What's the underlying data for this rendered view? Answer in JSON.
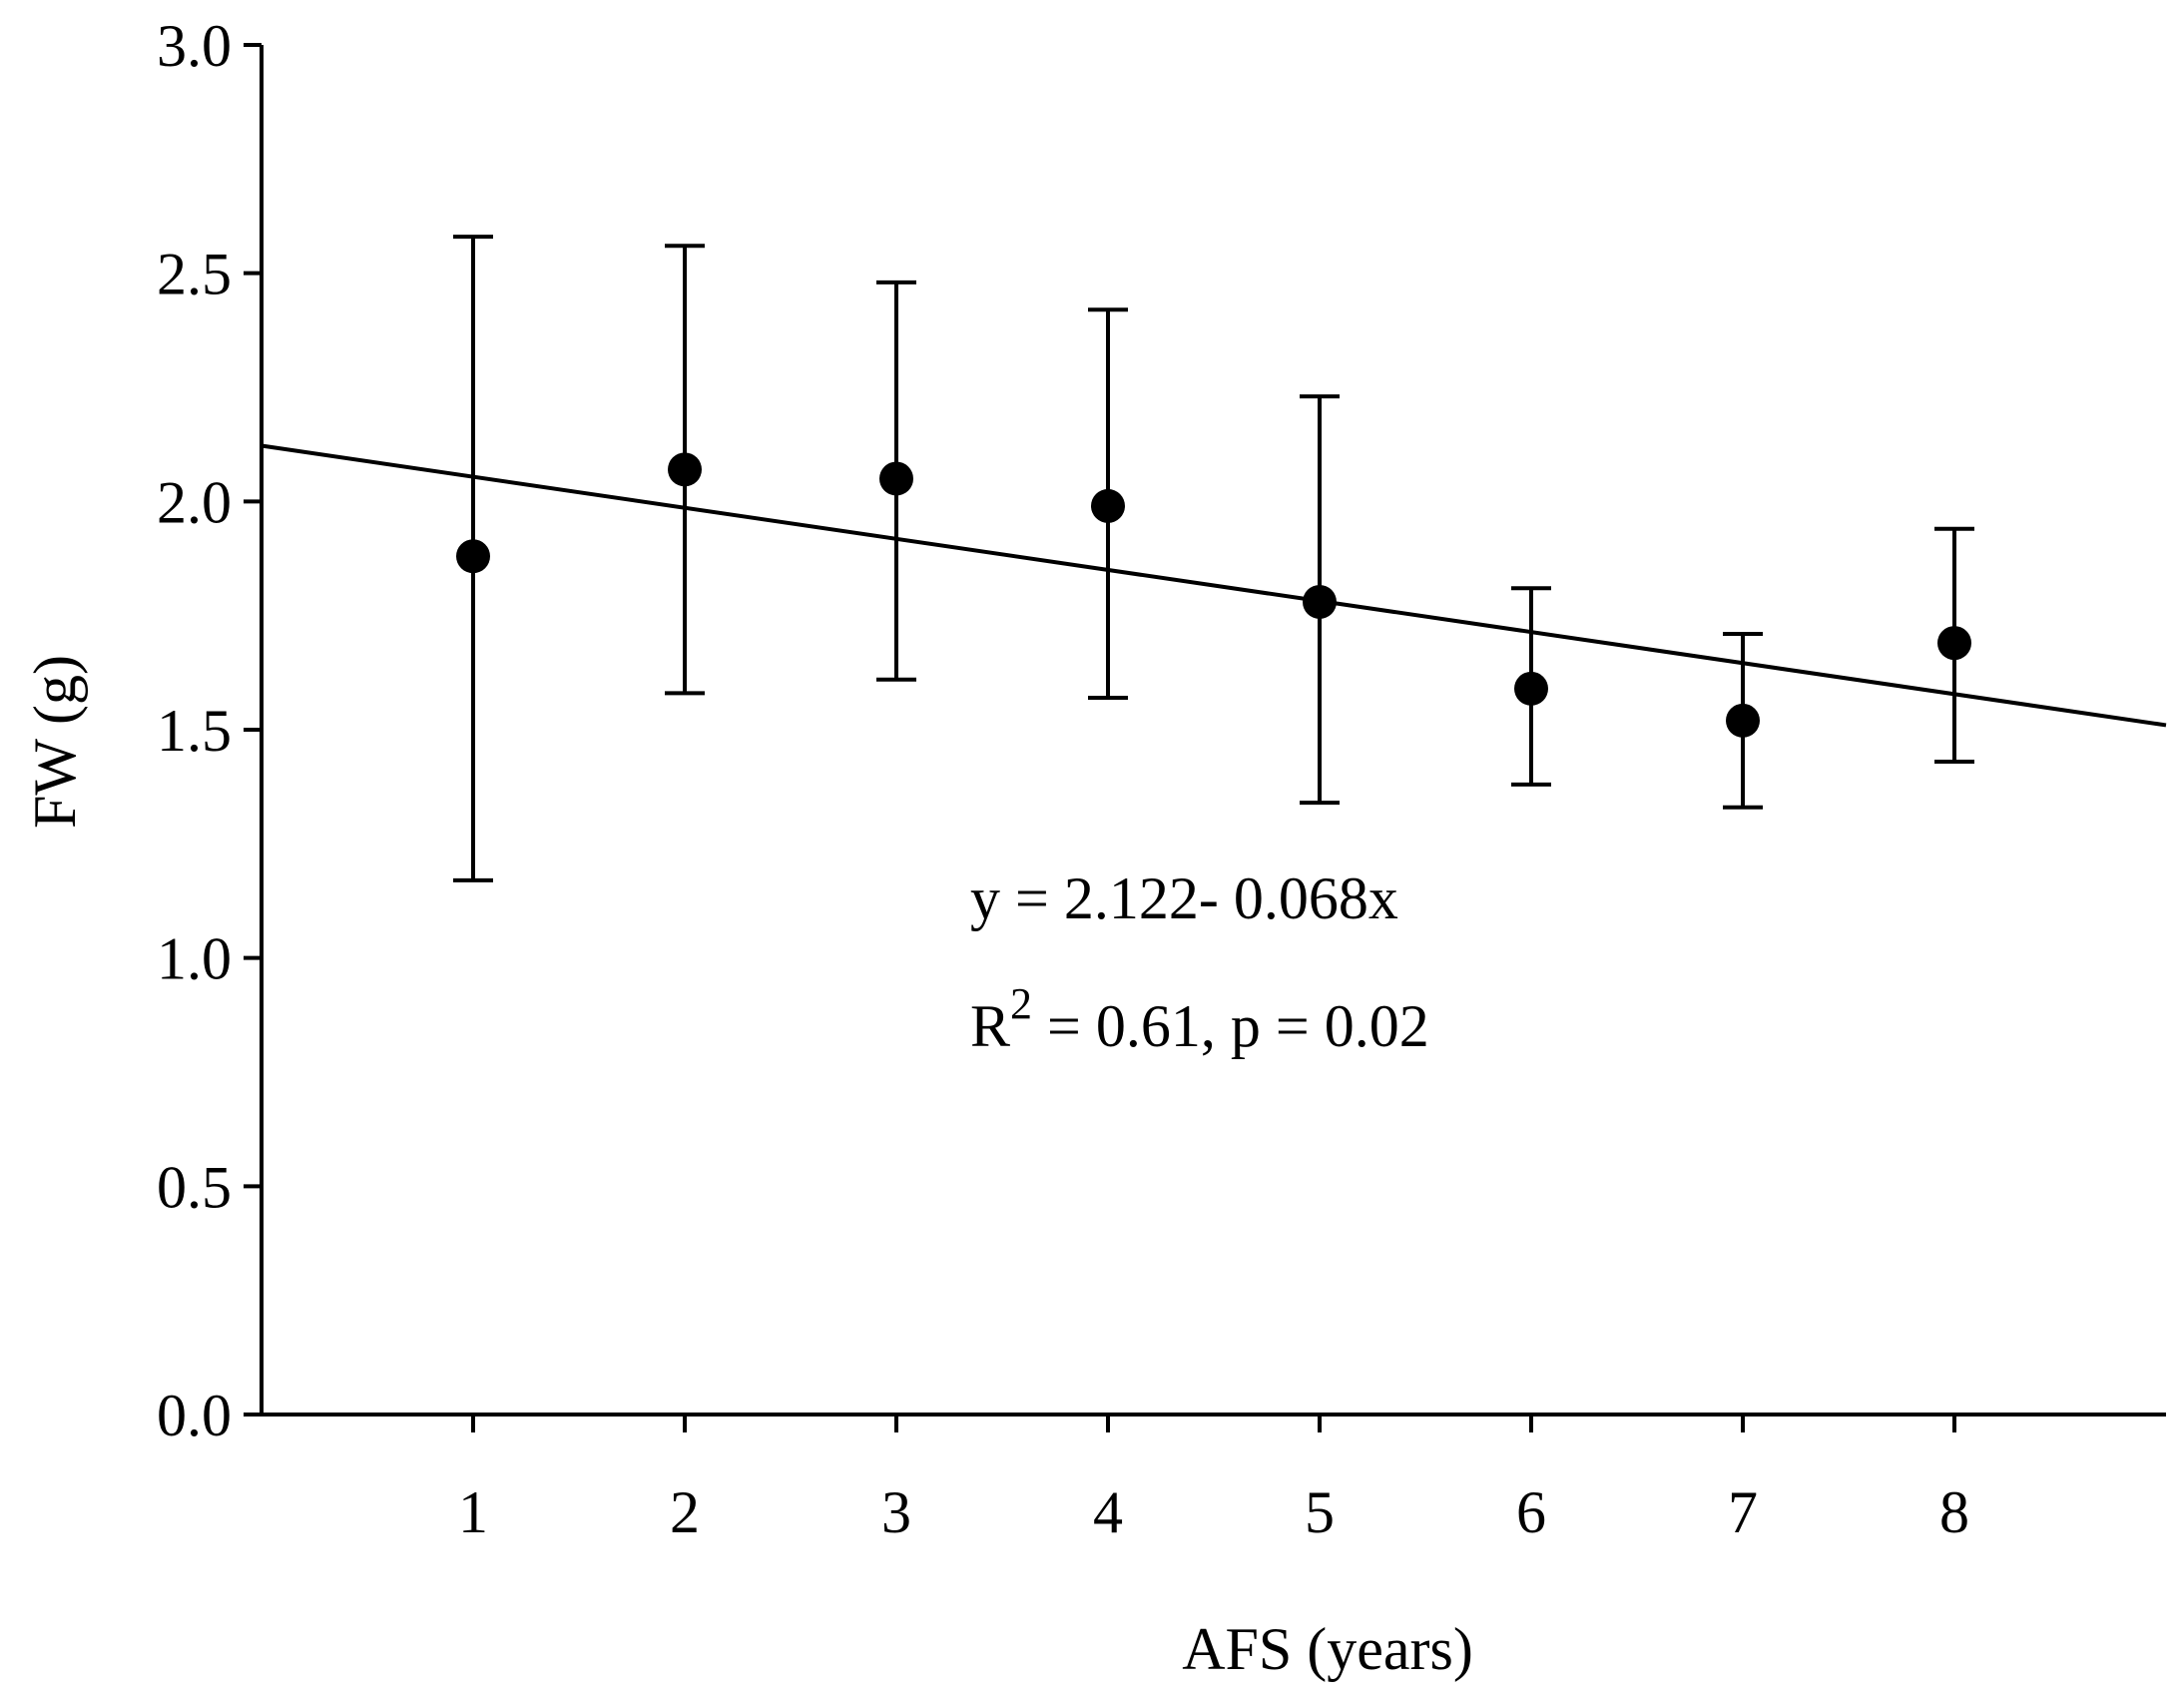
{
  "chart_data": {
    "type": "scatter",
    "title": "",
    "xlabel": "AFS (years)",
    "ylabel": "FW (g)",
    "xlim": [
      0,
      9
    ],
    "ylim": [
      0.0,
      3.0
    ],
    "x_ticks": [
      1,
      2,
      3,
      4,
      5,
      6,
      7,
      8
    ],
    "y_ticks": [
      "0.0",
      "0.5",
      "1.0",
      "1.5",
      "2.0",
      "2.5",
      "3.0"
    ],
    "series": [
      {
        "name": "FW",
        "x": [
          1,
          2,
          3,
          4,
          5,
          6,
          7,
          8
        ],
        "y": [
          1.88,
          2.07,
          2.05,
          1.99,
          1.78,
          1.59,
          1.52,
          1.69
        ],
        "err_upper": [
          2.58,
          2.56,
          2.48,
          2.42,
          2.23,
          1.81,
          1.71,
          1.94
        ],
        "err_lower": [
          1.17,
          1.58,
          1.61,
          1.57,
          1.34,
          1.38,
          1.33,
          1.43
        ]
      }
    ],
    "trendline": {
      "intercept": 2.122,
      "slope": -0.068
    },
    "annotations": {
      "equation": "y = 2.122- 0.068x",
      "r_prefix": "R",
      "r_superscript": "2",
      "stats": " = 0.61, p = 0.02"
    }
  }
}
